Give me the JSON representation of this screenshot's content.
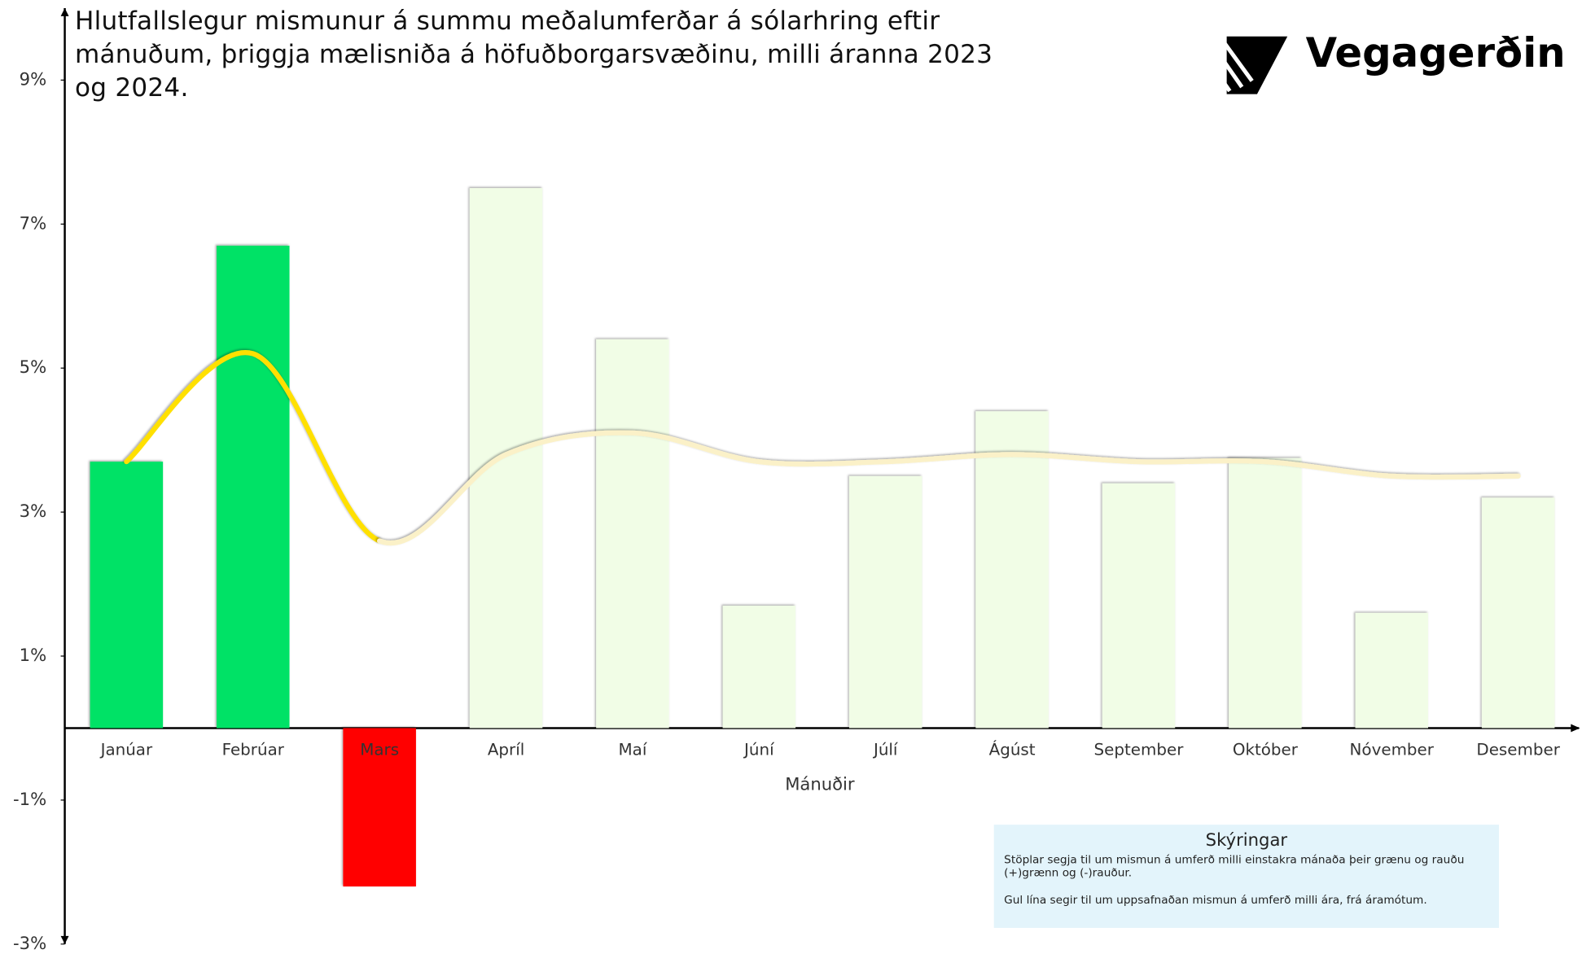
{
  "chart_data": {
    "type": "bar",
    "title": "Hlutfallslegur mismunur á summu meðalumferðar á sólarhring eftir mánuðum, þriggja mælisniða á höfuðborgarsvæðinu, milli áranna 2023 og 2024.",
    "brand": "Vegagerðin",
    "x_label": "Mánuðir",
    "categories": [
      "Janúar",
      "Febrúar",
      "Mars",
      "Apríl",
      "Maí",
      "Júní",
      "Júlí",
      "Ágúst",
      "September",
      "Október",
      "Nóvember",
      "Desember"
    ],
    "series": [
      {
        "type": "bar",
        "values": [
          3.7,
          6.7,
          -2.2,
          7.5,
          5.4,
          1.7,
          3.5,
          4.4,
          3.4,
          3.75,
          1.6,
          3.2
        ],
        "colors": [
          "#00e266",
          "#00e266",
          "#ff0000",
          "#f1fde6",
          "#f1fde6",
          "#f1fde6",
          "#f1fde6",
          "#f1fde6",
          "#f1fde6",
          "#f1fde6",
          "#f1fde6",
          "#f1fde6"
        ]
      },
      {
        "type": "line",
        "values": [
          3.7,
          5.2,
          2.6,
          3.8,
          4.1,
          3.7,
          3.7,
          3.8,
          3.7,
          3.7,
          3.5,
          3.5
        ],
        "colors": [
          "#ffe000",
          "#ffe000",
          "#ffe000",
          "#fbf1c8",
          "#fbf1c8",
          "#fbf1c8",
          "#fbf1c8",
          "#fbf1c8",
          "#fbf1c8",
          "#fbf1c8",
          "#fbf1c8",
          "#fbf1c8"
        ]
      }
    ],
    "ylim": [
      -3,
      10
    ],
    "yticks": [
      {
        "value": 9,
        "label": "9%"
      },
      {
        "value": 7,
        "label": "7%"
      },
      {
        "value": 5,
        "label": "5%"
      },
      {
        "value": 3,
        "label": "3%"
      },
      {
        "value": 1,
        "label": "1%"
      },
      {
        "value": -1,
        "label": "-1%"
      },
      {
        "value": -3,
        "label": "-3%"
      }
    ],
    "legend": {
      "title": "Skýringar",
      "lines": [
        "Stöplar segja til um mismun á umferð milli einstakra mánaða  þeir grænu og rauðu (+)grænn og (-)rauður.",
        "Gul lína segir til um uppsafnaðan mismun á umferð milli ára, frá áramótum."
      ]
    }
  }
}
